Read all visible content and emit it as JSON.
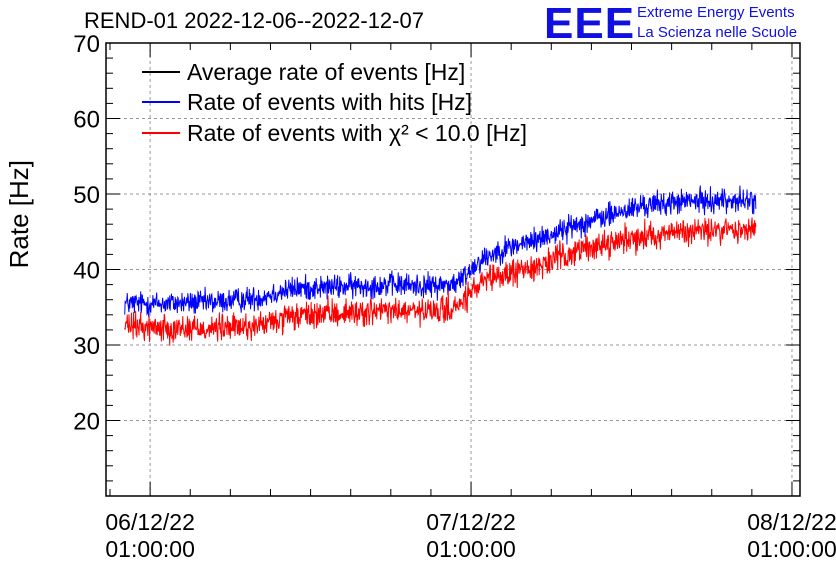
{
  "title": "REND-01 2022-12-06--2022-12-07",
  "logo": {
    "text": "EEE",
    "line1": "Extreme Energy Events",
    "line2": "La Scienza nelle Scuole",
    "color": "#1010e0"
  },
  "chart_data": {
    "type": "line",
    "title": "REND-01 2022-12-06--2022-12-07",
    "xlabel": "",
    "ylabel": "Rate [Hz]",
    "ylim": [
      10,
      70
    ],
    "xlim_hours": [
      -2.3,
      49.6
    ],
    "grid": true,
    "legend_position": "top-left",
    "yticks": [
      20,
      30,
      40,
      50,
      60,
      70
    ],
    "xticks": [
      {
        "hour": 1,
        "line1": "06/12/22",
        "line2": "01:00:00"
      },
      {
        "hour": 25,
        "line1": "07/12/22",
        "line2": "01:00:00"
      },
      {
        "hour": 49,
        "line1": "08/12/22",
        "line2": "01:00:00"
      }
    ],
    "legend": [
      {
        "name": "Average rate of events [Hz]",
        "color": "#000000"
      },
      {
        "name": "Rate of events with hits [Hz]",
        "color": "#0000ff"
      },
      {
        "name": "Rate of events with χ² < 10.0 [Hz]",
        "color": "#ff0000"
      }
    ],
    "series": [
      {
        "name": "Rate of events with hits [Hz]",
        "color": "#0000ff",
        "noise": 1.6,
        "x": [
          -0.9,
          2,
          6,
          9,
          10.5,
          12,
          15,
          19,
          22,
          24,
          25.5,
          27,
          30,
          33,
          36,
          38,
          41,
          44,
          46.3
        ],
        "y": [
          35.5,
          35.5,
          35.7,
          36.2,
          37.0,
          37.5,
          37.7,
          38.0,
          37.8,
          38.2,
          41.0,
          42.5,
          44.0,
          46.0,
          47.5,
          48.5,
          49.0,
          49.2,
          49.0
        ]
      },
      {
        "name": "Rate of events with χ² < 10.0 [Hz]",
        "color": "#ff0000",
        "noise": 1.8,
        "x": [
          -0.9,
          2,
          6,
          9,
          10.5,
          12,
          15,
          19,
          22,
          24,
          25.5,
          27,
          30,
          33,
          36,
          38,
          41,
          44,
          46.3
        ],
        "y": [
          32.5,
          32.3,
          32.2,
          32.5,
          33.2,
          33.8,
          34.2,
          34.5,
          34.3,
          35.0,
          37.8,
          39.0,
          40.5,
          42.5,
          43.8,
          44.5,
          45.0,
          45.2,
          45.3
        ]
      }
    ]
  }
}
